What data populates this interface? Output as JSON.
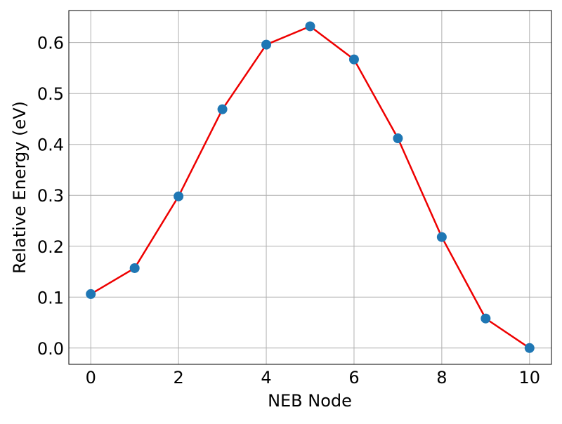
{
  "chart_data": {
    "type": "line",
    "title": "",
    "xlabel": "NEB Node",
    "ylabel": "Relative Energy (eV)",
    "xlim": [
      -0.5,
      10.5
    ],
    "ylim": [
      -0.032,
      0.663
    ],
    "xticks": [
      0,
      2,
      4,
      6,
      8,
      10
    ],
    "xtick_labels": [
      "0",
      "2",
      "4",
      "6",
      "8",
      "10"
    ],
    "yticks": [
      0.0,
      0.1,
      0.2,
      0.3,
      0.4,
      0.5,
      0.6
    ],
    "ytick_labels": [
      "0.0",
      "0.1",
      "0.2",
      "0.3",
      "0.4",
      "0.5",
      "0.6"
    ],
    "grid": true,
    "series": [
      {
        "x": [
          0,
          1,
          2,
          3,
          4,
          5,
          6,
          7,
          8,
          9,
          10
        ],
        "y": [
          0.106,
          0.157,
          0.298,
          0.469,
          0.596,
          0.632,
          0.567,
          0.412,
          0.218,
          0.058,
          0.0
        ],
        "line_color": "#ee0000",
        "marker_color": "#1f77b4"
      }
    ]
  }
}
